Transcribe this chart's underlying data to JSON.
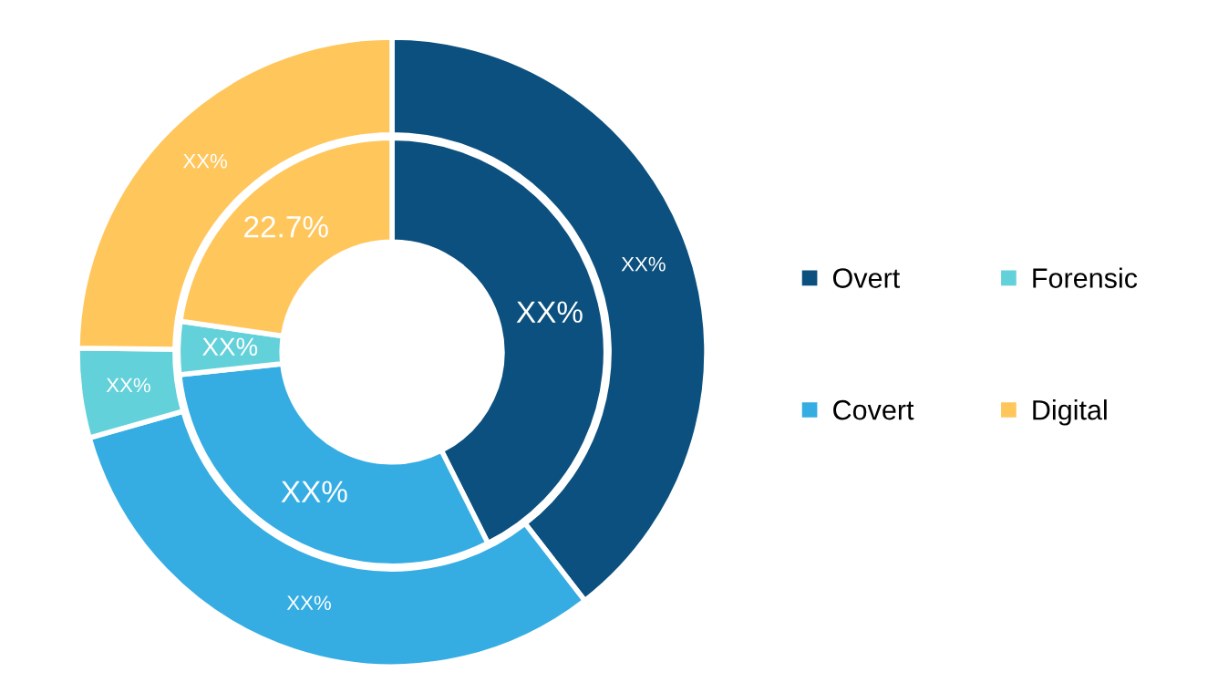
{
  "chart_data": {
    "type": "donut",
    "categories": [
      "Overt",
      "Covert",
      "Forensic",
      "Digital"
    ],
    "colors": [
      "#0b507e",
      "#35ade3",
      "#63d1da",
      "#ffc65c"
    ],
    "series": [
      {
        "values": [
          39.5,
          31.1,
          4.6,
          24.8
        ],
        "value_labels": [
          "XX%",
          "XX%",
          "XX%",
          "XX%"
        ]
      },
      {
        "values": [
          42.6,
          30.7,
          4.0,
          22.7
        ],
        "value_labels": [
          "XX%",
          "XX%",
          "XX%",
          "22.7%"
        ]
      }
    ],
    "legend": "right"
  }
}
